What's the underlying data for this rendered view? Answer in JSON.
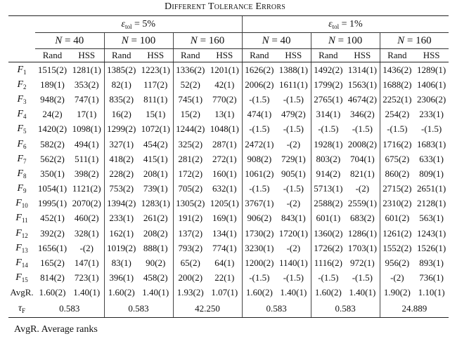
{
  "caption": "Different Tolerance Errors",
  "eps_symbol": "ε",
  "eps_sub": "tol",
  "eps_groups": [
    " = 5%",
    " = 1%"
  ],
  "n_symbol": "N",
  "n_values": [
    " = 40",
    " = 100",
    " = 160",
    " = 40",
    " = 100",
    " = 160"
  ],
  "methods": [
    "Rand",
    "HSS"
  ],
  "rows": [
    {
      "label": "F",
      "sub": "1",
      "cells": [
        "1515(2)",
        "1281(1)",
        "1385(2)",
        "1223(1)",
        "1336(2)",
        "1201(1)",
        "1626(2)",
        "1388(1)",
        "1492(2)",
        "1314(1)",
        "1436(2)",
        "1289(1)"
      ]
    },
    {
      "label": "F",
      "sub": "2",
      "cells": [
        "189(1)",
        "353(2)",
        "82(1)",
        "117(2)",
        "52(2)",
        "42(1)",
        "2006(2)",
        "1611(1)",
        "1799(2)",
        "1563(1)",
        "1688(2)",
        "1406(1)"
      ]
    },
    {
      "label": "F",
      "sub": "3",
      "cells": [
        "948(2)",
        "747(1)",
        "835(2)",
        "811(1)",
        "745(1)",
        "770(2)",
        "-(1.5)",
        "-(1.5)",
        "2765(1)",
        "4674(2)",
        "2252(1)",
        "2306(2)"
      ]
    },
    {
      "label": "F",
      "sub": "4",
      "cells": [
        "24(2)",
        "17(1)",
        "16(2)",
        "15(1)",
        "15(2)",
        "13(1)",
        "474(1)",
        "479(2)",
        "314(1)",
        "346(2)",
        "254(2)",
        "233(1)"
      ]
    },
    {
      "label": "F",
      "sub": "5",
      "cells": [
        "1420(2)",
        "1098(1)",
        "1299(2)",
        "1072(1)",
        "1244(2)",
        "1048(1)",
        "-(1.5)",
        "-(1.5)",
        "-(1.5)",
        "-(1.5)",
        "-(1.5)",
        "-(1.5)"
      ]
    },
    {
      "label": "F",
      "sub": "6",
      "cells": [
        "582(2)",
        "494(1)",
        "327(1)",
        "454(2)",
        "325(2)",
        "287(1)",
        "2472(1)",
        "-(2)",
        "1928(1)",
        "2008(2)",
        "1716(2)",
        "1683(1)"
      ]
    },
    {
      "label": "F",
      "sub": "7",
      "cells": [
        "562(2)",
        "511(1)",
        "418(2)",
        "415(1)",
        "281(2)",
        "272(1)",
        "908(2)",
        "729(1)",
        "803(2)",
        "704(1)",
        "675(2)",
        "633(1)"
      ]
    },
    {
      "label": "F",
      "sub": "8",
      "cells": [
        "350(1)",
        "398(2)",
        "228(2)",
        "208(1)",
        "172(2)",
        "160(1)",
        "1061(2)",
        "905(1)",
        "914(2)",
        "821(1)",
        "860(2)",
        "809(1)"
      ]
    },
    {
      "label": "F",
      "sub": "9",
      "cells": [
        "1054(1)",
        "1121(2)",
        "753(2)",
        "739(1)",
        "705(2)",
        "632(1)",
        "-(1.5)",
        "-(1.5)",
        "5713(1)",
        "-(2)",
        "2715(2)",
        "2651(1)"
      ]
    },
    {
      "label": "F",
      "sub": "10",
      "cells": [
        "1995(1)",
        "2070(2)",
        "1394(2)",
        "1283(1)",
        "1305(2)",
        "1205(1)",
        "3767(1)",
        "-(2)",
        "2588(2)",
        "2559(1)",
        "2310(2)",
        "2128(1)"
      ]
    },
    {
      "label": "F",
      "sub": "11",
      "cells": [
        "452(1)",
        "460(2)",
        "233(1)",
        "261(2)",
        "191(2)",
        "169(1)",
        "906(2)",
        "843(1)",
        "601(1)",
        "683(2)",
        "601(2)",
        "563(1)"
      ]
    },
    {
      "label": "F",
      "sub": "12",
      "cells": [
        "392(2)",
        "328(1)",
        "162(1)",
        "208(2)",
        "137(2)",
        "134(1)",
        "1730(2)",
        "1720(1)",
        "1360(2)",
        "1286(1)",
        "1261(2)",
        "1243(1)"
      ]
    },
    {
      "label": "F",
      "sub": "13",
      "cells": [
        "1656(1)",
        "-(2)",
        "1019(2)",
        "888(1)",
        "793(2)",
        "774(1)",
        "3230(1)",
        "-(2)",
        "1726(2)",
        "1703(1)",
        "1552(2)",
        "1526(1)"
      ]
    },
    {
      "label": "F",
      "sub": "14",
      "cells": [
        "165(2)",
        "147(1)",
        "83(1)",
        "90(2)",
        "65(2)",
        "64(1)",
        "1200(2)",
        "1140(1)",
        "1116(2)",
        "972(1)",
        "956(2)",
        "893(1)"
      ]
    },
    {
      "label": "F",
      "sub": "15",
      "cells": [
        "814(2)",
        "723(1)",
        "396(1)",
        "458(2)",
        "200(2)",
        "22(1)",
        "-(1.5)",
        "-(1.5)",
        "-(1.5)",
        "-(1.5)",
        "-(2)",
        "736(1)"
      ]
    },
    {
      "label": "AvgR.",
      "sub": "",
      "cells": [
        "1.60(2)",
        "1.40(1)",
        "1.60(2)",
        "1.40(1)",
        "1.93(2)",
        "1.07(1)",
        "1.60(2)",
        "1.40(1)",
        "1.60(2)",
        "1.40(1)",
        "1.90(2)",
        "1.10(1)"
      ]
    }
  ],
  "tau": {
    "label": "τ",
    "sub": "F",
    "values": [
      "0.583",
      "0.583",
      "42.250",
      "0.583",
      "0.583",
      "24.889"
    ]
  },
  "footnote": "AvgR. Average ranks"
}
